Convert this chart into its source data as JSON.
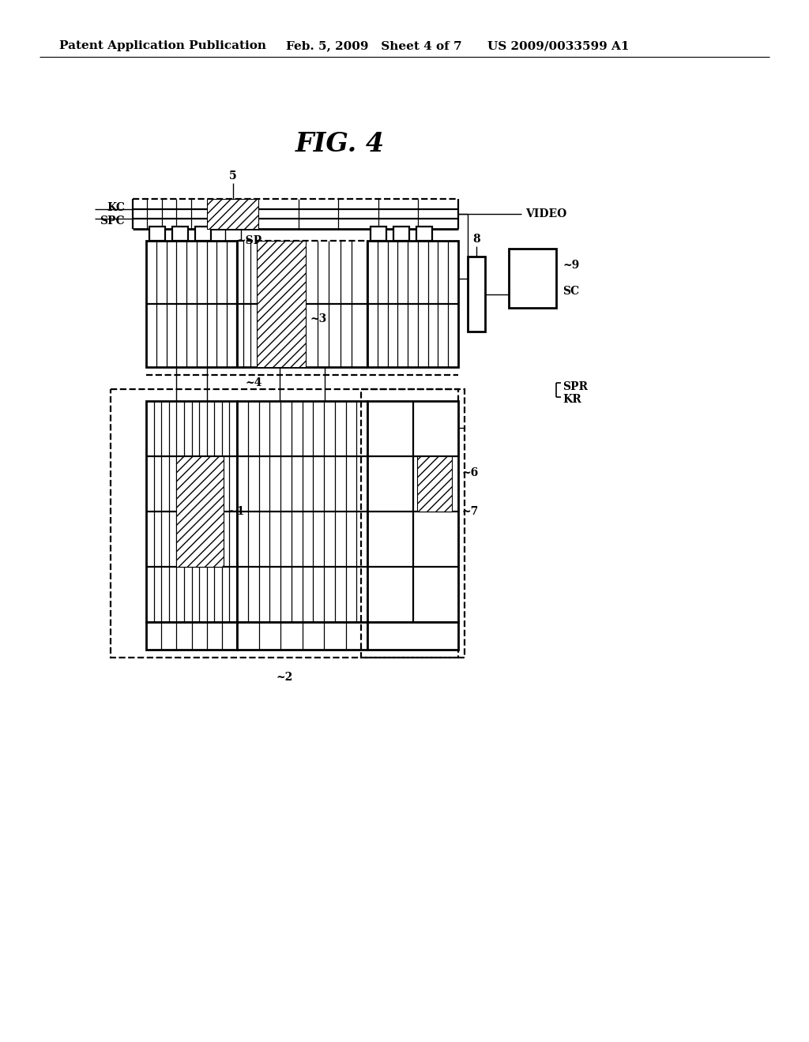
{
  "bg_color": "#ffffff",
  "header_left": "Patent Application Publication",
  "header_mid": "Feb. 5, 2009   Sheet 4 of 7",
  "header_right": "US 2009/0033599 A1",
  "fig_title": "FIG. 4",
  "lw_thin": 1.0,
  "lw_med": 1.6,
  "lw_thick": 2.0,
  "lw_dash": 1.6
}
